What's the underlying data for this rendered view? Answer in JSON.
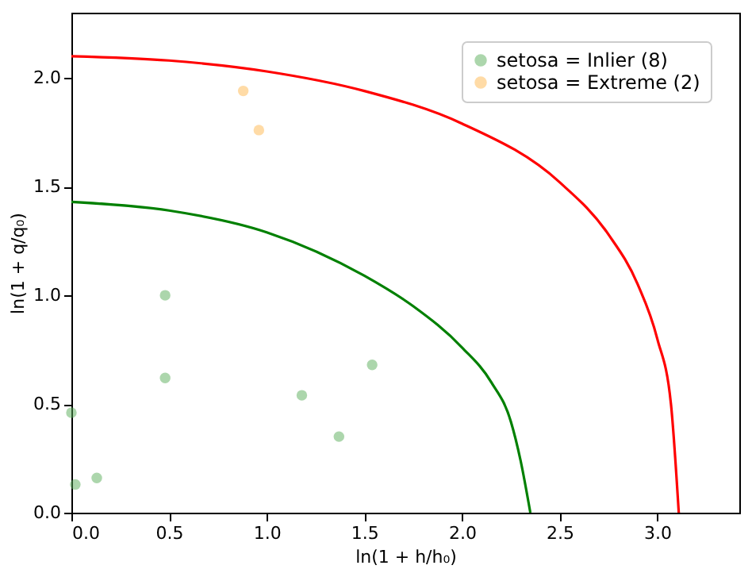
{
  "chart_data": {
    "type": "scatter",
    "xlabel": "ln(1 + h/h₀)",
    "ylabel": "ln(1 + q/q₀)",
    "xlim": [
      0,
      3.42
    ],
    "ylim": [
      0,
      2.3
    ],
    "xticks": [
      {
        "value": 0,
        "label": "0.0"
      },
      0.5,
      {
        "value": 1,
        "label": "1.0"
      },
      1.5,
      {
        "value": 2,
        "label": "2.0"
      },
      2.5,
      {
        "value": 3,
        "label": "3.0"
      }
    ],
    "yticks": [
      {
        "value": 0,
        "label": "0.0"
      },
      0.5,
      {
        "value": 1,
        "label": "1.0"
      },
      1.5,
      {
        "value": 2,
        "label": "2.0"
      }
    ],
    "grid": false,
    "legend": "top right",
    "marker": "circle",
    "series": [
      {
        "type": "line",
        "marker": "none",
        "color": "#008000",
        "x": [
          0,
          0.5,
          1.0,
          1.5,
          1.75,
          2.0,
          2.15,
          2.25,
          2.3,
          2.35
        ],
        "values": [
          1.43,
          1.39,
          1.29,
          1.09,
          0.95,
          0.76,
          0.6,
          0.42,
          0.24,
          0
        ]
      },
      {
        "type": "line",
        "marker": "none",
        "color": "#ff0000",
        "x": [
          0,
          0.5,
          1.0,
          1.5,
          2.0,
          2.5,
          2.75,
          2.9,
          3.0,
          3.07,
          3.11
        ],
        "values": [
          2.1,
          2.08,
          2.03,
          1.94,
          1.79,
          1.52,
          1.28,
          1.05,
          0.8,
          0.5,
          0
        ]
      },
      {
        "type": "scatter",
        "name": "setosa = Inlier (8)",
        "color": "#5aad5a",
        "x": [
          0.0,
          0.02,
          0.13,
          0.48,
          0.48,
          1.18,
          1.37,
          1.54
        ],
        "values": [
          0.46,
          0.13,
          0.16,
          1.0,
          0.62,
          0.54,
          0.35,
          0.68
        ]
      },
      {
        "type": "scatter",
        "name": "setosa = Extreme (2)",
        "color": "#ffb84d",
        "x": [
          0.88,
          0.96
        ],
        "values": [
          1.94,
          1.76
        ]
      }
    ]
  }
}
